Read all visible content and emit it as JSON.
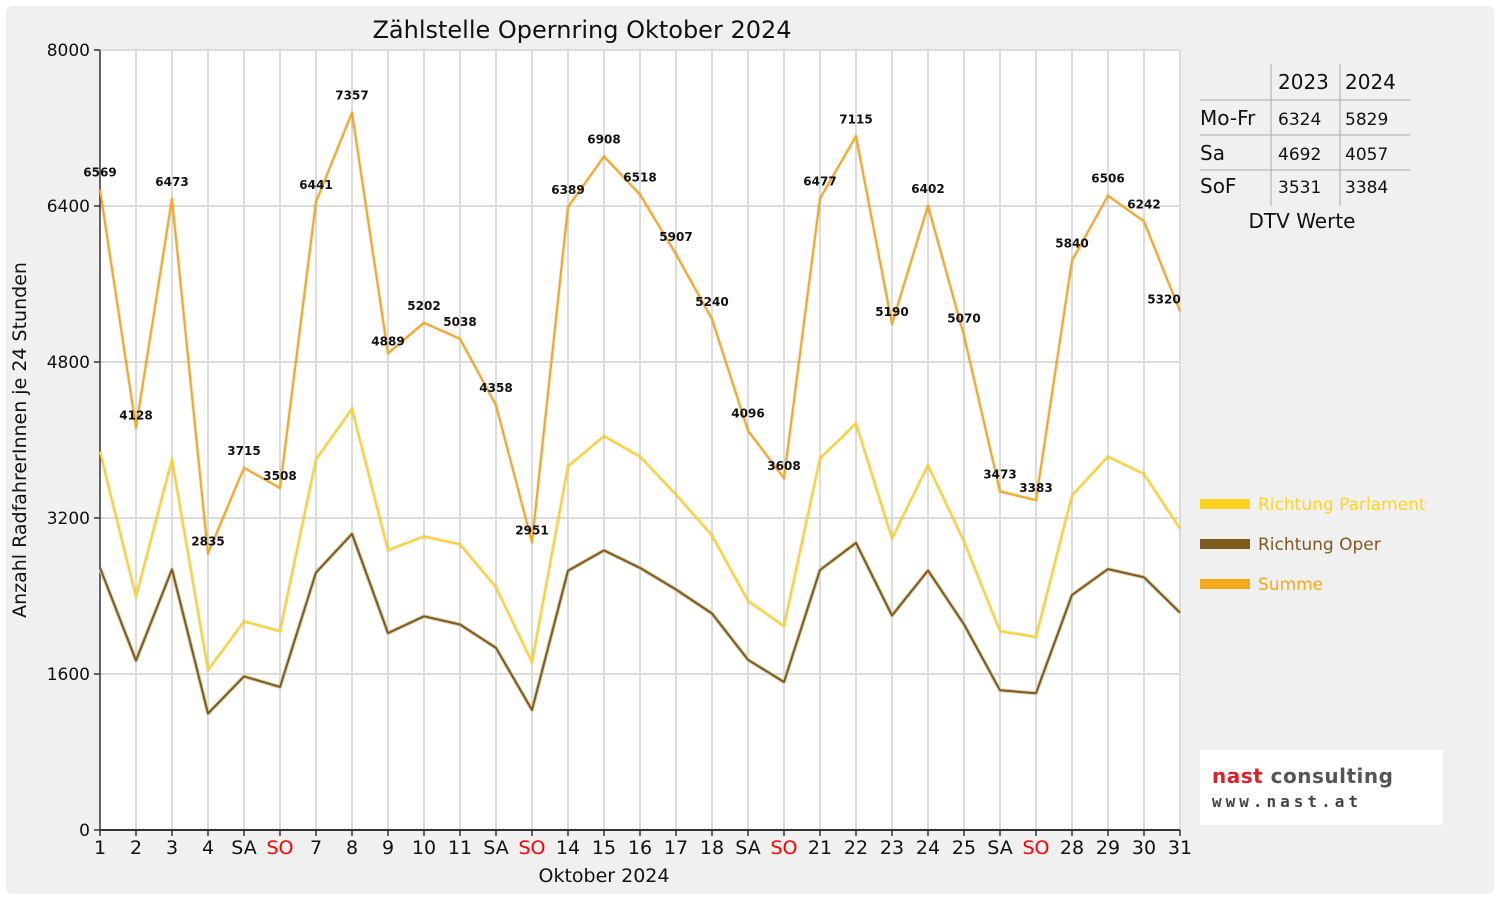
{
  "chart_data": {
    "type": "line",
    "title": "Zählstelle Opernring Oktober 2024",
    "xlabel": "Oktober 2024",
    "ylabel": "Anzahl RadfahrerInnen je 24 Stunden",
    "ylim": [
      0,
      8000
    ],
    "yticks": [
      "0",
      "1600",
      "3200",
      "4800",
      "6400",
      "8000"
    ],
    "grid": true,
    "legend_position": "right",
    "categories": [
      "1",
      "2",
      "3",
      "4",
      "SA",
      "SO",
      "7",
      "8",
      "9",
      "10",
      "11",
      "SA",
      "SO",
      "14",
      "15",
      "16",
      "17",
      "18",
      "SA",
      "SO",
      "21",
      "22",
      "23",
      "24",
      "25",
      "SA",
      "SO",
      "28",
      "29",
      "30",
      "31"
    ],
    "weekend_color": "#ff0000",
    "series": [
      {
        "name": "Richtung Parlament",
        "color": "#ffd320",
        "values": [
          3880,
          2390,
          3800,
          1640,
          2140,
          2040,
          3800,
          4320,
          2870,
          3010,
          2930,
          2490,
          1720,
          3730,
          4040,
          3830,
          3440,
          3020,
          2350,
          2090,
          3810,
          4170,
          2990,
          3740,
          2960,
          2040,
          1980,
          3430,
          3830,
          3650,
          3090
        ]
      },
      {
        "name": "Richtung Oper",
        "color": "#7e5a1c",
        "values": [
          2689,
          1738,
          2673,
          1195,
          1575,
          1468,
          2641,
          3037,
          2019,
          2192,
          2108,
          1868,
          1231,
          2659,
          2868,
          2688,
          2467,
          2220,
          1746,
          1518,
          2667,
          2945,
          2200,
          2662,
          2110,
          1433,
          1403,
          2410,
          2676,
          2592,
          2230
        ]
      },
      {
        "name": "Summe",
        "color": "#f4a81a",
        "values": [
          6569,
          4128,
          6473,
          2835,
          3715,
          3508,
          6441,
          7357,
          4889,
          5202,
          5038,
          4358,
          2951,
          6389,
          6908,
          6518,
          5907,
          5240,
          4096,
          3608,
          6477,
          7115,
          5190,
          6402,
          5070,
          3473,
          3383,
          5840,
          6506,
          6242,
          5320
        ]
      }
    ]
  },
  "dtv_table": {
    "caption": "DTV Werte",
    "headers": [
      "",
      "2023",
      "2024"
    ],
    "rows": [
      [
        "Mo-Fr",
        "6324",
        "5829"
      ],
      [
        "Sa",
        "4692",
        "4057"
      ],
      [
        "SoF",
        "3531",
        "3384"
      ]
    ]
  },
  "logo": {
    "name_red": "nast",
    "name_rest": " consulting",
    "url": "www.nast.at",
    "red": "#d8222a"
  }
}
